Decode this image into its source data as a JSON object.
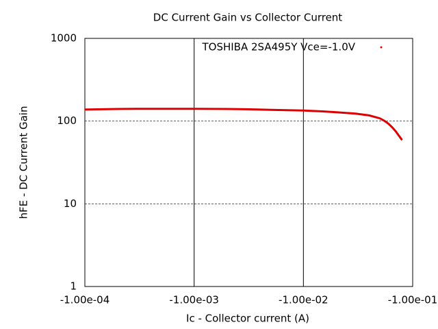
{
  "chart_data": {
    "type": "line",
    "title": "DC Current Gain vs Collector Current",
    "x_label": "Ic - Collector current (A)",
    "y_label": "hFE - DC Current Gain",
    "x": [
      -0.0001,
      -0.0002,
      -0.0003,
      -0.0005,
      -0.001,
      -0.002,
      -0.003,
      -0.005,
      -0.01,
      -0.015,
      -0.02,
      -0.03,
      -0.04,
      -0.05,
      -0.055,
      -0.06,
      -0.065,
      -0.07,
      -0.075,
      -0.08
    ],
    "series": [
      {
        "name": "TOSHIBA 2SA495Y Vce=-1.0V",
        "color": "#dd0000",
        "values": [
          138,
          140,
          141,
          141,
          141,
          140,
          139,
          137,
          134,
          131,
          128,
          123,
          117,
          108,
          101,
          93,
          84,
          75,
          66,
          59
        ]
      }
    ],
    "xlim": [
      -0.0001,
      -0.1
    ],
    "xticks": [
      {
        "value": -0.0001,
        "label": "-1.00e-04"
      },
      {
        "value": -0.001,
        "label": "-1.00e-03"
      },
      {
        "value": -0.01,
        "label": "-1.00e-02"
      },
      {
        "value": -0.1,
        "label": "-1.00e-01"
      }
    ],
    "ylim": [
      1,
      1000
    ],
    "yticks": [
      1,
      10,
      100,
      1000
    ],
    "x_log": true,
    "y_log": true,
    "grid": true,
    "legend": "top-right"
  }
}
